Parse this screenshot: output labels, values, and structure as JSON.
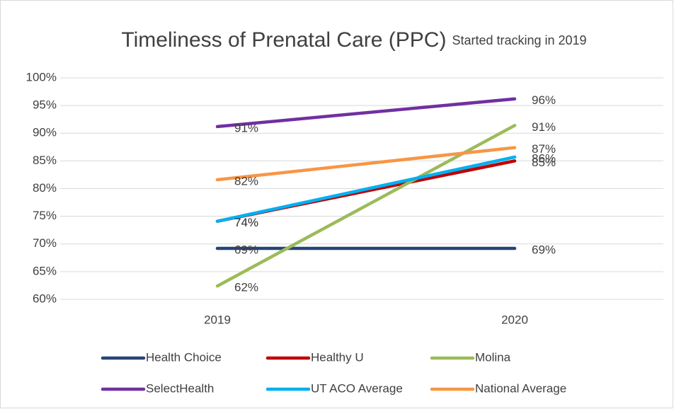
{
  "chart_data": {
    "type": "line",
    "title": "Timeliness of Prenatal Care (PPC)",
    "subtitle": "Started tracking in 2019",
    "categories": [
      "2019",
      "2020"
    ],
    "series": [
      {
        "name": "Health Choice",
        "color": "#264478",
        "values": [
          69.2,
          69.2
        ],
        "value_labels": [
          "69%",
          "69%"
        ]
      },
      {
        "name": "Healthy U",
        "color": "#c00000",
        "values": [
          74.1,
          85
        ],
        "value_labels": [
          "74%",
          "85%"
        ]
      },
      {
        "name": "Molina",
        "color": "#9bbb59",
        "values": [
          62.4,
          91.4
        ],
        "value_labels": [
          "62%",
          "91%"
        ]
      },
      {
        "name": "SelectHealth",
        "color": "#7030a0",
        "values": [
          91.2,
          96.2
        ],
        "value_labels": [
          "91%",
          "96%"
        ]
      },
      {
        "name": "UT ACO Average",
        "color": "#00b0f0",
        "values": [
          74.1,
          85.7
        ],
        "value_labels": [
          "74%",
          "86%"
        ]
      },
      {
        "name": "National Average",
        "color": "#f79646",
        "values": [
          81.6,
          87.4
        ],
        "value_labels": [
          "82%",
          "87%"
        ]
      }
    ],
    "ylim": [
      60,
      100
    ],
    "yticks": [
      {
        "value": 60,
        "label": "60%"
      },
      {
        "value": 65,
        "label": "65%"
      },
      {
        "value": 70,
        "label": "70%"
      },
      {
        "value": 75,
        "label": "75%"
      },
      {
        "value": 80,
        "label": "80%"
      },
      {
        "value": 85,
        "label": "85%"
      },
      {
        "value": 90,
        "label": "90%"
      },
      {
        "value": 95,
        "label": "95%"
      },
      {
        "value": 100,
        "label": "100%"
      }
    ],
    "grid": true
  }
}
